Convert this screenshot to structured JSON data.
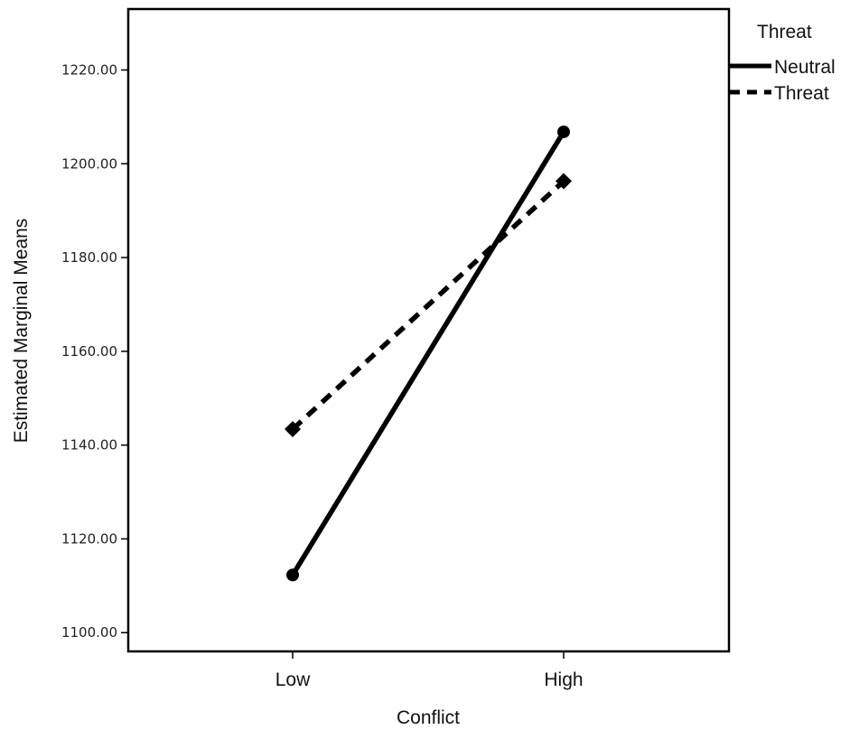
{
  "chart_data": {
    "type": "line",
    "title": "",
    "xlabel": "Conflict",
    "ylabel": "Estimated Marginal Means",
    "categories": [
      "Low",
      "High"
    ],
    "ylim": [
      1096,
      1233
    ],
    "yticks": [
      1100,
      1120,
      1140,
      1160,
      1180,
      1200,
      1220
    ],
    "ytick_labels": [
      "1100.00",
      "1120.00",
      "1140.00",
      "1160.00",
      "1180.00",
      "1200.00",
      "1220.00"
    ],
    "grid": false,
    "legend": {
      "title": "Threat",
      "placement": "top-right-outside"
    },
    "series": [
      {
        "name": "Neutral",
        "values": [
          1112.3,
          1206.8
        ],
        "style": "solid",
        "marker": "circle",
        "color": "#000000"
      },
      {
        "name": "Threat",
        "values": [
          1143.4,
          1196.3
        ],
        "style": "dashed",
        "marker": "diamond",
        "color": "#000000"
      }
    ]
  }
}
